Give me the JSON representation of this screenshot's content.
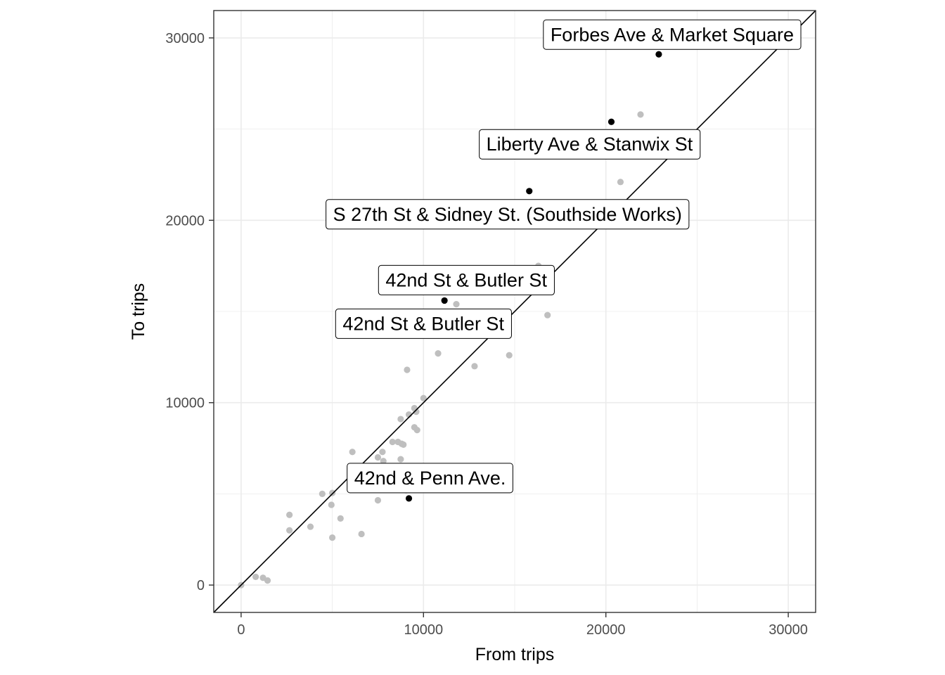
{
  "chart_data": {
    "type": "scatter",
    "xlabel": "From trips",
    "ylabel": "To trips",
    "xlim": [
      -1500,
      31500
    ],
    "ylim": [
      -1500,
      31500
    ],
    "x_ticks": [
      0,
      10000,
      20000,
      30000
    ],
    "y_ticks": [
      0,
      10000,
      20000,
      30000
    ],
    "grid": true,
    "reference_line": "y = x",
    "colors": {
      "background_points": "#bfbfbf",
      "highlight_points": "#000000",
      "grid": "#ebebeb",
      "panel_border": "#333333"
    },
    "background_points": [
      [
        0,
        0
      ],
      [
        800,
        450
      ],
      [
        1200,
        400
      ],
      [
        1450,
        250
      ],
      [
        2650,
        3850
      ],
      [
        2650,
        3000
      ],
      [
        3800,
        3200
      ],
      [
        4450,
        5000
      ],
      [
        5000,
        5050
      ],
      [
        4950,
        4400
      ],
      [
        5000,
        2600
      ],
      [
        5450,
        3650
      ],
      [
        6100,
        7300
      ],
      [
        6600,
        2800
      ],
      [
        7500,
        7000
      ],
      [
        7500,
        4650
      ],
      [
        7750,
        7300
      ],
      [
        7800,
        6800
      ],
      [
        8300,
        7850
      ],
      [
        8600,
        7850
      ],
      [
        8800,
        7750
      ],
      [
        8900,
        7700
      ],
      [
        8750,
        9100
      ],
      [
        8750,
        6900
      ],
      [
        9200,
        9350
      ],
      [
        9500,
        9700
      ],
      [
        9500,
        8650
      ],
      [
        9650,
        8500
      ],
      [
        9600,
        9500
      ],
      [
        9050,
        5200
      ],
      [
        9100,
        11800
      ],
      [
        10000,
        10250
      ],
      [
        10800,
        12700
      ],
      [
        11800,
        15400
      ],
      [
        12800,
        12000
      ],
      [
        14700,
        12600
      ],
      [
        16300,
        17500
      ],
      [
        16800,
        14800
      ],
      [
        20800,
        22100
      ],
      [
        21900,
        25800
      ]
    ],
    "highlighted_points": [
      {
        "label": "Forbes Ave & Market Square",
        "x": 22900,
        "y": 29100
      },
      {
        "label": "Liberty Ave & Stanwix St",
        "x": 20300,
        "y": 25400
      },
      {
        "label": "S 27th St & Sidney St. (Southside Works)",
        "x": 15800,
        "y": 21600
      },
      {
        "label": "42nd St & Butler St",
        "x": 11150,
        "y": 15600
      },
      {
        "label": "42nd St & Butler St",
        "x": 11150,
        "y": 15600
      },
      {
        "label": "42nd & Penn Ave.",
        "x": 9200,
        "y": 4750
      }
    ]
  }
}
